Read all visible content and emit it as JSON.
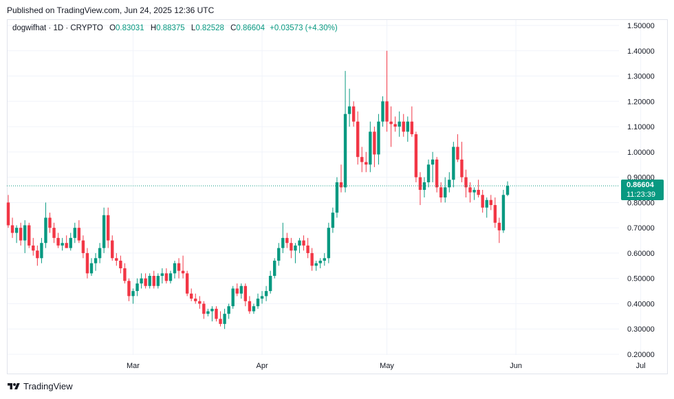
{
  "header": {
    "published": "Published on TradingView.com, Jun 24, 2025 12:36 UTC"
  },
  "legend": {
    "symbol": "dogwifhat · 1D · CRYPTO",
    "o_label": "O",
    "o": "0.83031",
    "h_label": "H",
    "h": "0.88375",
    "l_label": "L",
    "l": "0.82528",
    "c_label": "C",
    "c": "0.86604",
    "change": "+0.03573 (+4.30%)"
  },
  "last_price": {
    "price": "0.86604",
    "countdown": "11:23:39"
  },
  "footer": {
    "brand": "TradingView"
  },
  "colors": {
    "up": "#089981",
    "down": "#f23645",
    "grid": "#f0f3fa",
    "text": "#131722"
  },
  "chart_data": {
    "type": "candlestick",
    "ylim": [
      0.2,
      1.5
    ],
    "yticks": [
      "1.50000",
      "1.40000",
      "1.30000",
      "1.20000",
      "1.10000",
      "1.00000",
      "0.90000",
      "0.80000",
      "0.70000",
      "0.60000",
      "0.50000",
      "0.40000",
      "0.30000",
      "0.20000"
    ],
    "ytick_values": [
      1.5,
      1.4,
      1.3,
      1.2,
      1.1,
      1.0,
      0.9,
      0.8,
      0.7,
      0.6,
      0.5,
      0.4,
      0.3,
      0.2
    ],
    "xticks": [
      {
        "label": "Mar",
        "index": 30
      },
      {
        "label": "Apr",
        "index": 61
      },
      {
        "label": "May",
        "index": 91
      },
      {
        "label": "Jun",
        "index": 122
      },
      {
        "label": "Jul",
        "index": 152
      }
    ],
    "ohlc": [
      [
        0.8,
        0.83,
        0.7,
        0.71
      ],
      [
        0.71,
        0.74,
        0.66,
        0.68
      ],
      [
        0.68,
        0.71,
        0.64,
        0.7
      ],
      [
        0.7,
        0.72,
        0.63,
        0.65
      ],
      [
        0.65,
        0.73,
        0.6,
        0.71
      ],
      [
        0.71,
        0.72,
        0.62,
        0.63
      ],
      [
        0.63,
        0.66,
        0.59,
        0.61
      ],
      [
        0.61,
        0.63,
        0.55,
        0.58
      ],
      [
        0.58,
        0.66,
        0.56,
        0.64
      ],
      [
        0.64,
        0.8,
        0.62,
        0.74
      ],
      [
        0.74,
        0.76,
        0.68,
        0.7
      ],
      [
        0.7,
        0.72,
        0.64,
        0.66
      ],
      [
        0.66,
        0.68,
        0.62,
        0.63
      ],
      [
        0.63,
        0.66,
        0.61,
        0.64
      ],
      [
        0.64,
        0.67,
        0.62,
        0.62
      ],
      [
        0.62,
        0.68,
        0.61,
        0.66
      ],
      [
        0.66,
        0.72,
        0.64,
        0.7
      ],
      [
        0.7,
        0.73,
        0.64,
        0.65
      ],
      [
        0.65,
        0.67,
        0.58,
        0.6
      ],
      [
        0.6,
        0.62,
        0.5,
        0.52
      ],
      [
        0.52,
        0.58,
        0.51,
        0.56
      ],
      [
        0.56,
        0.6,
        0.53,
        0.58
      ],
      [
        0.58,
        0.64,
        0.56,
        0.62
      ],
      [
        0.62,
        0.78,
        0.6,
        0.75
      ],
      [
        0.75,
        0.78,
        0.62,
        0.65
      ],
      [
        0.65,
        0.67,
        0.57,
        0.58
      ],
      [
        0.58,
        0.6,
        0.55,
        0.57
      ],
      [
        0.57,
        0.59,
        0.52,
        0.54
      ],
      [
        0.54,
        0.56,
        0.48,
        0.49
      ],
      [
        0.49,
        0.5,
        0.41,
        0.43
      ],
      [
        0.43,
        0.46,
        0.4,
        0.45
      ],
      [
        0.45,
        0.5,
        0.43,
        0.48
      ],
      [
        0.48,
        0.52,
        0.46,
        0.5
      ],
      [
        0.5,
        0.52,
        0.46,
        0.47
      ],
      [
        0.47,
        0.52,
        0.46,
        0.51
      ],
      [
        0.51,
        0.53,
        0.46,
        0.47
      ],
      [
        0.47,
        0.52,
        0.46,
        0.51
      ],
      [
        0.51,
        0.54,
        0.48,
        0.52
      ],
      [
        0.52,
        0.54,
        0.48,
        0.49
      ],
      [
        0.49,
        0.53,
        0.48,
        0.52
      ],
      [
        0.52,
        0.57,
        0.5,
        0.56
      ],
      [
        0.56,
        0.58,
        0.5,
        0.53
      ],
      [
        0.53,
        0.59,
        0.5,
        0.52
      ],
      [
        0.52,
        0.53,
        0.43,
        0.44
      ],
      [
        0.44,
        0.46,
        0.41,
        0.42
      ],
      [
        0.42,
        0.44,
        0.4,
        0.41
      ],
      [
        0.41,
        0.43,
        0.38,
        0.4
      ],
      [
        0.4,
        0.41,
        0.34,
        0.36
      ],
      [
        0.36,
        0.38,
        0.35,
        0.37
      ],
      [
        0.37,
        0.39,
        0.33,
        0.38
      ],
      [
        0.38,
        0.39,
        0.33,
        0.34
      ],
      [
        0.34,
        0.37,
        0.31,
        0.32
      ],
      [
        0.32,
        0.38,
        0.3,
        0.36
      ],
      [
        0.36,
        0.4,
        0.34,
        0.39
      ],
      [
        0.39,
        0.47,
        0.38,
        0.46
      ],
      [
        0.46,
        0.48,
        0.43,
        0.44
      ],
      [
        0.44,
        0.48,
        0.42,
        0.47
      ],
      [
        0.47,
        0.48,
        0.39,
        0.41
      ],
      [
        0.41,
        0.43,
        0.36,
        0.37
      ],
      [
        0.37,
        0.4,
        0.36,
        0.39
      ],
      [
        0.39,
        0.44,
        0.38,
        0.42
      ],
      [
        0.42,
        0.45,
        0.4,
        0.43
      ],
      [
        0.43,
        0.47,
        0.41,
        0.45
      ],
      [
        0.45,
        0.53,
        0.44,
        0.51
      ],
      [
        0.51,
        0.58,
        0.5,
        0.57
      ],
      [
        0.57,
        0.64,
        0.55,
        0.62
      ],
      [
        0.62,
        0.72,
        0.6,
        0.66
      ],
      [
        0.66,
        0.68,
        0.62,
        0.64
      ],
      [
        0.64,
        0.66,
        0.58,
        0.61
      ],
      [
        0.61,
        0.64,
        0.56,
        0.63
      ],
      [
        0.63,
        0.66,
        0.6,
        0.65
      ],
      [
        0.65,
        0.67,
        0.61,
        0.63
      ],
      [
        0.63,
        0.66,
        0.58,
        0.6
      ],
      [
        0.6,
        0.62,
        0.53,
        0.55
      ],
      [
        0.55,
        0.57,
        0.53,
        0.56
      ],
      [
        0.56,
        0.58,
        0.54,
        0.57
      ],
      [
        0.57,
        0.6,
        0.55,
        0.58
      ],
      [
        0.58,
        0.72,
        0.56,
        0.7
      ],
      [
        0.7,
        0.78,
        0.68,
        0.76
      ],
      [
        0.76,
        0.9,
        0.74,
        0.88
      ],
      [
        0.88,
        0.95,
        0.84,
        0.86
      ],
      [
        0.86,
        1.32,
        0.84,
        1.15
      ],
      [
        1.15,
        1.25,
        1.1,
        1.18
      ],
      [
        1.18,
        1.2,
        1.1,
        1.12
      ],
      [
        1.12,
        1.16,
        0.95,
        0.98
      ],
      [
        0.98,
        1.02,
        0.92,
        0.96
      ],
      [
        0.96,
        1.0,
        0.92,
        0.95
      ],
      [
        0.95,
        1.12,
        0.92,
        1.08
      ],
      [
        1.08,
        1.1,
        0.94,
        0.99
      ],
      [
        0.99,
        1.15,
        0.95,
        1.12
      ],
      [
        1.12,
        1.22,
        1.1,
        1.2
      ],
      [
        1.2,
        1.4,
        1.08,
        1.12
      ],
      [
        1.12,
        1.18,
        1.02,
        1.11
      ],
      [
        1.11,
        1.14,
        1.08,
        1.1
      ],
      [
        1.1,
        1.16,
        1.06,
        1.12
      ],
      [
        1.12,
        1.15,
        1.06,
        1.08
      ],
      [
        1.08,
        1.14,
        1.04,
        1.12
      ],
      [
        1.12,
        1.18,
        1.06,
        1.07
      ],
      [
        1.07,
        1.08,
        0.88,
        0.9
      ],
      [
        0.9,
        0.92,
        0.79,
        0.85
      ],
      [
        0.85,
        0.9,
        0.82,
        0.88
      ],
      [
        0.88,
        0.97,
        0.86,
        0.95
      ],
      [
        0.95,
        1.0,
        0.88,
        0.97
      ],
      [
        0.97,
        0.98,
        0.84,
        0.86
      ],
      [
        0.86,
        0.88,
        0.8,
        0.82
      ],
      [
        0.82,
        0.9,
        0.8,
        0.86
      ],
      [
        0.86,
        0.92,
        0.84,
        0.89
      ],
      [
        0.89,
        1.04,
        0.86,
        1.02
      ],
      [
        1.02,
        1.07,
        0.96,
        0.97
      ],
      [
        0.97,
        1.04,
        0.88,
        0.9
      ],
      [
        0.9,
        0.93,
        0.82,
        0.86
      ],
      [
        0.86,
        0.88,
        0.8,
        0.84
      ],
      [
        0.84,
        0.86,
        0.81,
        0.85
      ],
      [
        0.85,
        0.89,
        0.82,
        0.83
      ],
      [
        0.83,
        0.85,
        0.76,
        0.78
      ],
      [
        0.78,
        0.82,
        0.74,
        0.81
      ],
      [
        0.81,
        0.83,
        0.77,
        0.79
      ],
      [
        0.79,
        0.82,
        0.7,
        0.72
      ],
      [
        0.72,
        0.74,
        0.64,
        0.69
      ],
      [
        0.69,
        0.85,
        0.68,
        0.83
      ],
      [
        0.83031,
        0.88375,
        0.82528,
        0.86604
      ]
    ]
  }
}
